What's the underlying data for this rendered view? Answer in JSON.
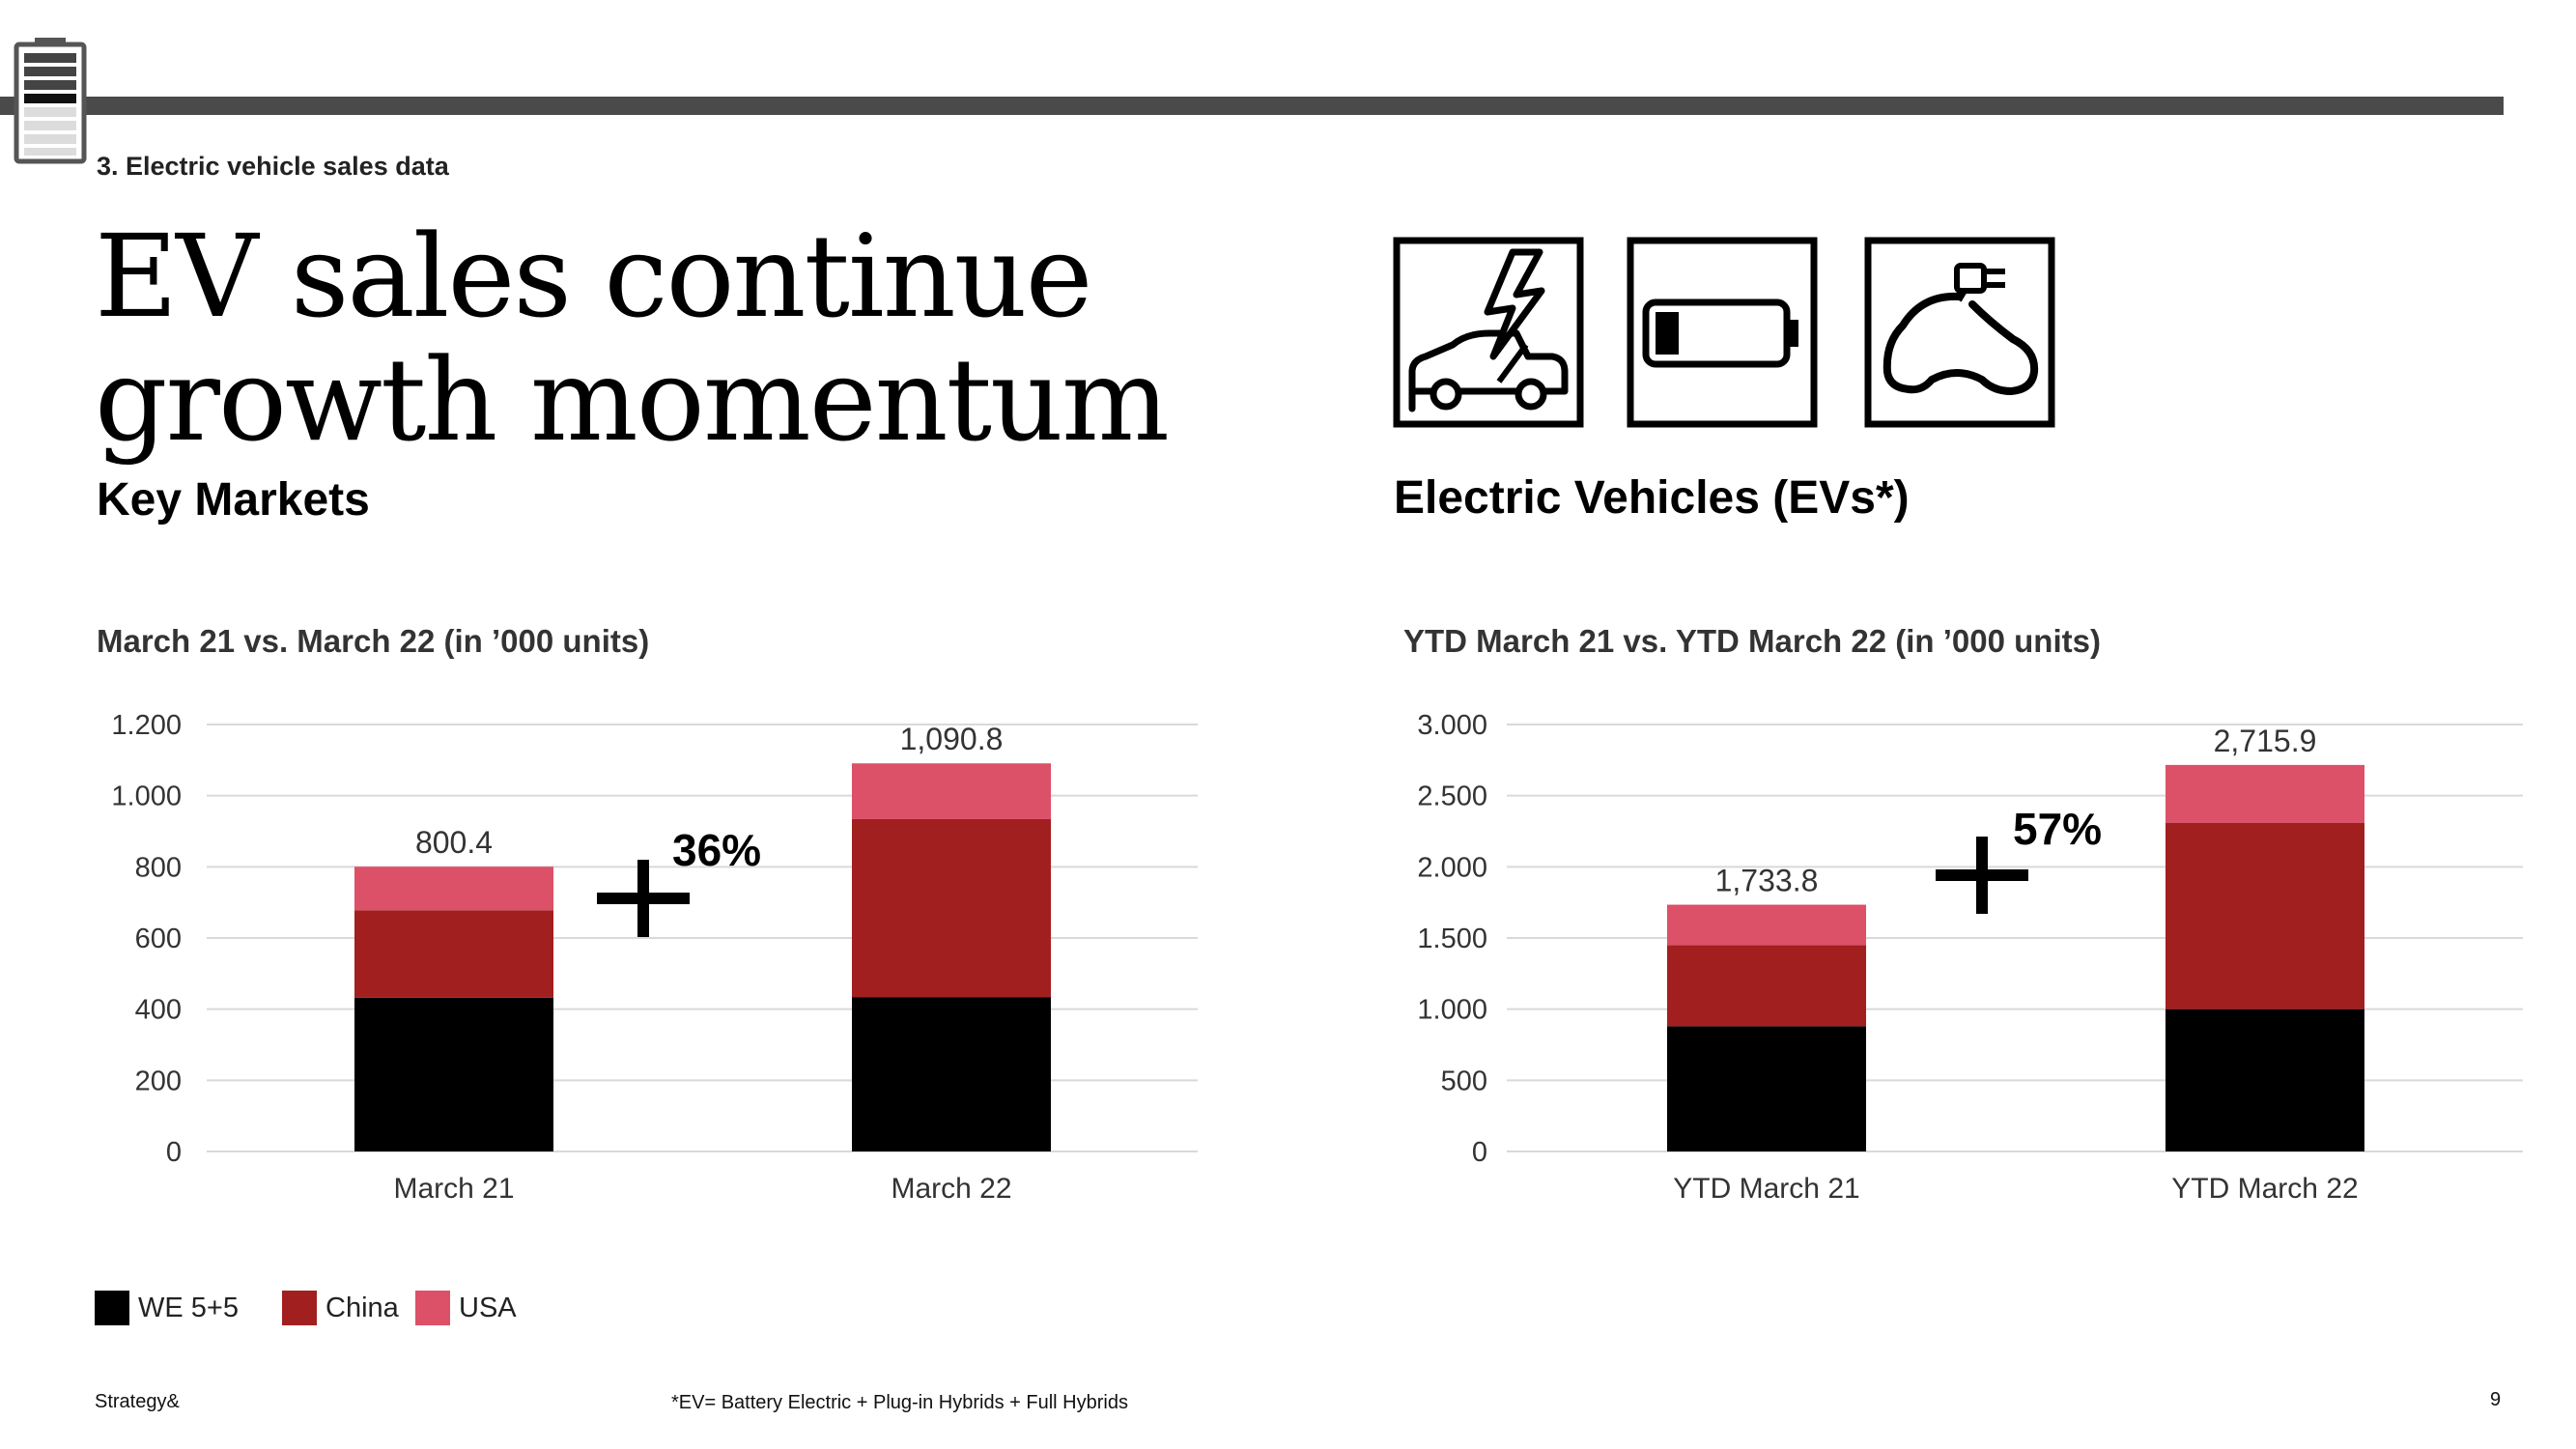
{
  "section_label": "3. Electric vehicle sales data",
  "title_lines": [
    "EV sales continue",
    "growth momentum"
  ],
  "left_subtitle": "Key Markets",
  "right_subtitle": "Electric Vehicles (EVs*)",
  "icons": [
    "car-charging-icon",
    "battery-icon",
    "ev-plug-car-icon"
  ],
  "colors": {
    "we": "#000000",
    "china": "#a21f1f",
    "usa": "#dc5068",
    "grid": "#d9d9d9",
    "bar_top": "#4a4a4a"
  },
  "legend": [
    {
      "label": "WE 5+5",
      "color": "#000000"
    },
    {
      "label": "China",
      "color": "#a21f1f"
    },
    {
      "label": "USA",
      "color": "#dc5068"
    }
  ],
  "footer": {
    "left": "Strategy&",
    "note": "*EV= Battery Electric + Plug-in Hybrids + Full Hybrids",
    "page": "9"
  },
  "chart_data": [
    {
      "type": "bar",
      "stacked": true,
      "title": "March 21 vs. March 22 (in ’000 units)",
      "categories": [
        "March 21",
        "March 22"
      ],
      "series": [
        {
          "name": "WE 5+5",
          "values": [
            432,
            434
          ]
        },
        {
          "name": "China",
          "values": [
            246,
            500
          ]
        },
        {
          "name": "USA",
          "values": [
            122.4,
            156.8
          ]
        }
      ],
      "totals": [
        "800.4",
        "1,090.8"
      ],
      "ylim": [
        0,
        1200
      ],
      "yticks": [
        0,
        200,
        400,
        600,
        800,
        1000,
        1200
      ],
      "ytick_labels": [
        "0",
        "200",
        "400",
        "600",
        "800",
        "1.000",
        "1.200"
      ],
      "growth_label": "36%",
      "grid": true
    },
    {
      "type": "bar",
      "stacked": true,
      "title": "YTD March 21 vs. YTD March 22 (in ’000 units)",
      "categories": [
        "YTD March 21",
        "YTD March 22"
      ],
      "series": [
        {
          "name": "WE 5+5",
          "values": [
            880,
            1000
          ]
        },
        {
          "name": "China",
          "values": [
            570,
            1310
          ]
        },
        {
          "name": "USA",
          "values": [
            283.8,
            405.9
          ]
        }
      ],
      "totals": [
        "1,733.8",
        "2,715.9"
      ],
      "ylim": [
        0,
        3000
      ],
      "yticks": [
        0,
        500,
        1000,
        1500,
        2000,
        2500,
        3000
      ],
      "ytick_labels": [
        "0",
        "500",
        "1.000",
        "1.500",
        "2.000",
        "2.500",
        "3.000"
      ],
      "growth_label": "57%",
      "grid": true
    }
  ]
}
